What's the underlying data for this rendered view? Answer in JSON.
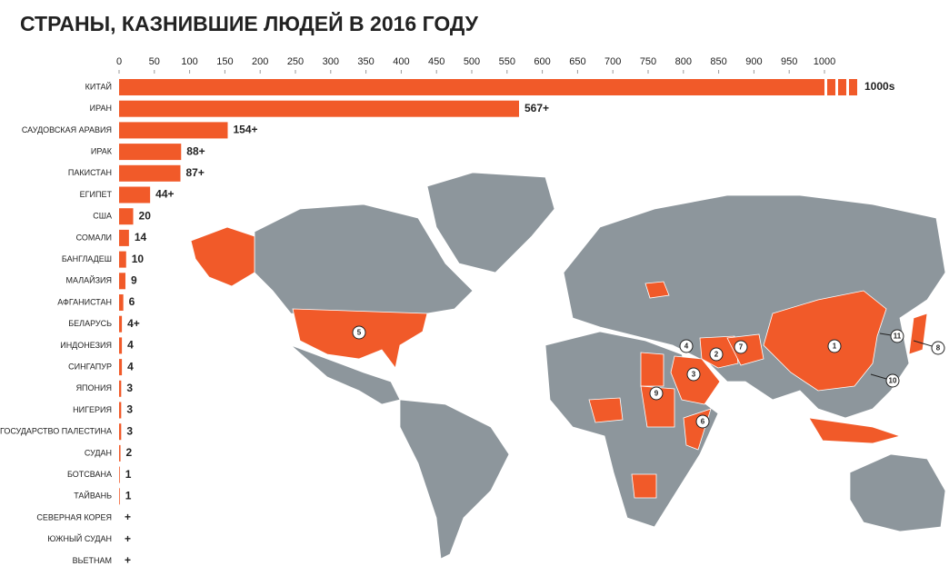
{
  "chart_data": {
    "type": "bar",
    "title": "СТРАНЫ, КАЗНИВШИЕ ЛЮДЕЙ В 2016 ГОДУ",
    "categories": [
      "КИТАЙ",
      "ИРАН",
      "САУДОВСКАЯ АРАВИЯ",
      "ИРАК",
      "ПАКИСТАН",
      "ЕГИПЕТ",
      "США",
      "СОМАЛИ",
      "БАНГЛАДЕШ",
      "МАЛАЙЗИЯ",
      "АФГАНИСТАН",
      "БЕЛАРУСЬ",
      "ИНДОНЕЗИЯ",
      "СИНГАПУР",
      "ЯПОНИЯ",
      "НИГЕРИЯ",
      "ГОСУДАРСТВО ПАЛЕСТИНА",
      "СУДАН",
      "БОТСВАНА",
      "ТАЙВАНЬ",
      "СЕВЕРНАЯ КОРЕЯ",
      "ЮЖНЫЙ СУДАН",
      "ВЬЕТНАМ"
    ],
    "values": [
      1000,
      567,
      154,
      88,
      87,
      44,
      20,
      14,
      10,
      9,
      6,
      4,
      4,
      4,
      3,
      3,
      3,
      2,
      1,
      1,
      null,
      null,
      null
    ],
    "value_labels": [
      "1000s",
      "567+",
      "154+",
      "88+",
      "87+",
      "44+",
      "20",
      "14",
      "10",
      "9",
      "6",
      "4+",
      "4",
      "4",
      "3",
      "3",
      "3",
      "2",
      "1",
      "1",
      "+",
      "+",
      "+"
    ],
    "color": "#f15a29",
    "xlim": [
      0,
      1000
    ],
    "xticks": [
      0,
      50,
      100,
      150,
      200,
      250,
      300,
      350,
      400,
      450,
      500,
      550,
      600,
      650,
      700,
      750,
      800,
      850,
      900,
      950,
      1000
    ],
    "map_labels": [
      "1",
      "2",
      "3",
      "4",
      "5",
      "6",
      "7",
      "8",
      "9",
      "10",
      "11"
    ]
  }
}
